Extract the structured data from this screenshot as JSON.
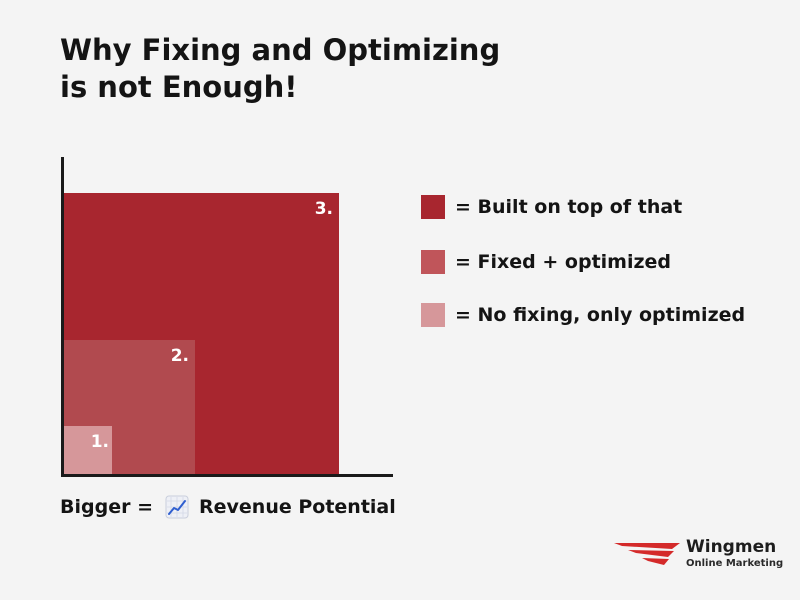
{
  "title": {
    "line1": "Why Fixing and Optimizing",
    "line2": "is not Enough!"
  },
  "diagram": {
    "squares": [
      {
        "label": "1.",
        "color": "#d6979a"
      },
      {
        "label": "2.",
        "color": "#b14a4f"
      },
      {
        "label": "3.",
        "color": "#a8262f"
      }
    ]
  },
  "legend": [
    {
      "text": "= Built on top of that",
      "color": "#a8262f"
    },
    {
      "text": "= Fixed + optimized",
      "color": "#c0555a"
    },
    {
      "text": "= No fixing, only optimized",
      "color": "#d6979a"
    }
  ],
  "caption": {
    "prefix": "Bigger =",
    "icon": "chart-increasing-icon",
    "suffix": "Revenue Potential"
  },
  "logo": {
    "name": "Wingmen",
    "subtitle": "Online Marketing",
    "color": "#d42a2a"
  }
}
